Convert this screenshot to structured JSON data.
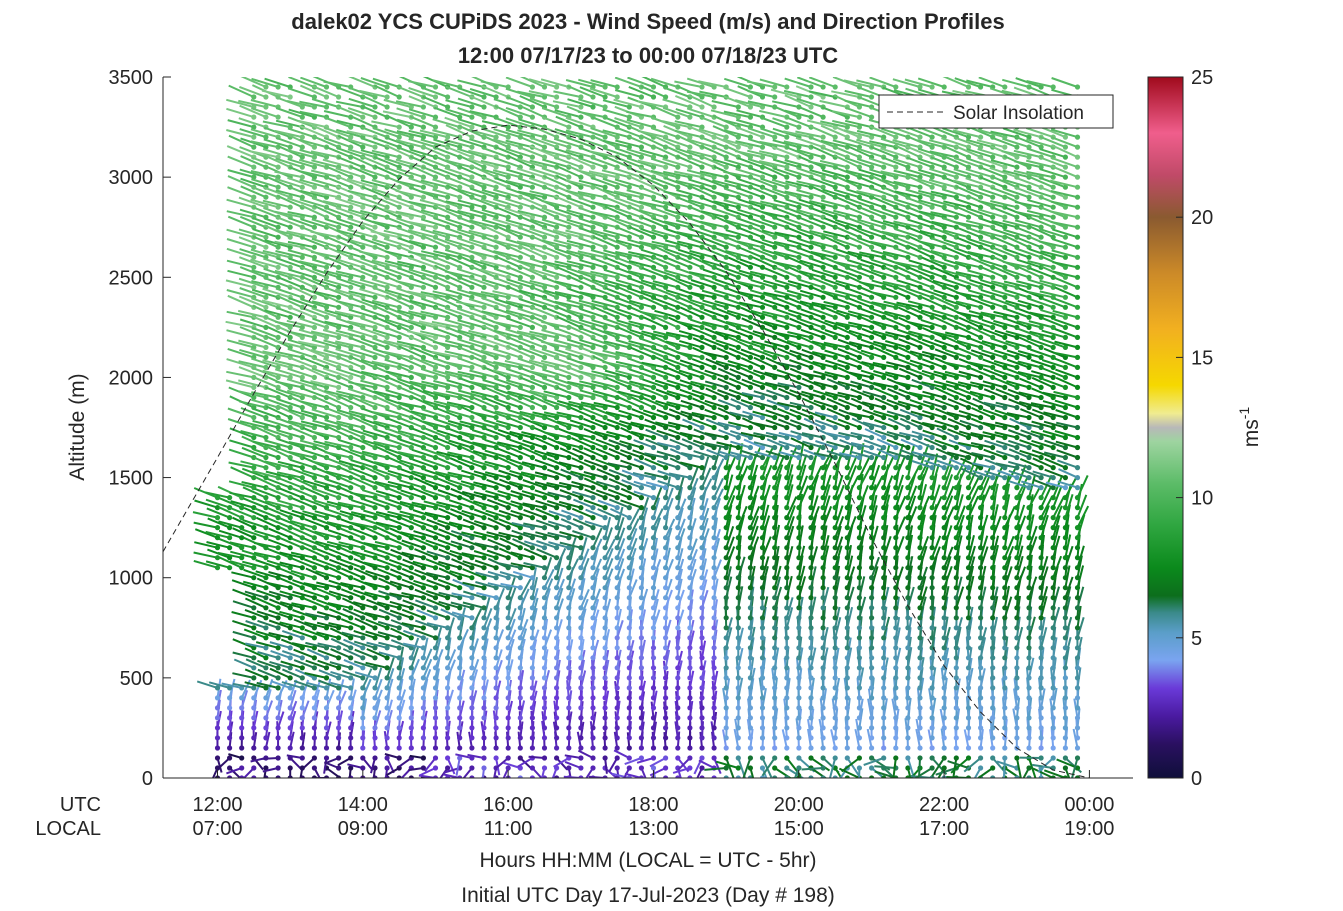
{
  "chart_data": {
    "type": "wind-barb profile (time-height)",
    "title": "dalek02 YCS CUPiDS 2023 - Wind Speed (m/s) and Direction Profiles",
    "subtitle": "12:00 07/17/23 to 00:00 07/18/23  UTC",
    "ylabel": "Altitude (m)",
    "ylim": [
      0,
      3500
    ],
    "y_ticks": [
      "0",
      "500",
      "1000",
      "1500",
      "2000",
      "2500",
      "3000",
      "3500"
    ],
    "xlim_hours_utc": [
      11.25,
      24.6
    ],
    "x_tick_hours_utc": [
      12,
      14,
      16,
      18,
      20,
      22,
      24
    ],
    "x_row_labels": [
      "UTC",
      "LOCAL"
    ],
    "x_ticks_utc": [
      "12:00",
      "14:00",
      "16:00",
      "18:00",
      "20:00",
      "22:00",
      "00:00"
    ],
    "x_ticks_local": [
      "07:00",
      "09:00",
      "11:00",
      "13:00",
      "15:00",
      "17:00",
      "19:00"
    ],
    "xlabel": "Hours HH:MM  (LOCAL = UTC - 5hr)",
    "xlabel2": "Initial UTC Day 17-Jul-2023 (Day # 198)",
    "legend": {
      "label": "Solar Insolation",
      "placement": "top-right"
    },
    "colorbar": {
      "label": "ms",
      "exponent": "-1",
      "range": [
        0,
        25
      ],
      "ticks": [
        "0",
        "5",
        "10",
        "15",
        "20",
        "25"
      ],
      "colors": [
        [
          0,
          "#0f0f3a"
        ],
        [
          1.2,
          "#2a1060"
        ],
        [
          2.2,
          "#4a1aa0"
        ],
        [
          3.2,
          "#6a3ad8"
        ],
        [
          4.2,
          "#7aa4f0"
        ],
        [
          5.2,
          "#5a9ec8"
        ],
        [
          5.9,
          "#3a8a8a"
        ],
        [
          6.5,
          "#0c6e1c"
        ],
        [
          7.5,
          "#0b8a1c"
        ],
        [
          9,
          "#2fa640"
        ],
        [
          10.5,
          "#5cbc68"
        ],
        [
          12,
          "#9ed4a0"
        ],
        [
          12.5,
          "#b8b8b8"
        ],
        [
          13,
          "#f0ec90"
        ],
        [
          14,
          "#f5d800"
        ],
        [
          16,
          "#f2b020"
        ],
        [
          18,
          "#cc8a28"
        ],
        [
          20,
          "#8a5a30"
        ],
        [
          21.5,
          "#c04a68"
        ],
        [
          23,
          "#f05e8c"
        ],
        [
          25,
          "#a00a1c"
        ]
      ]
    },
    "series": [
      {
        "type": "line",
        "style": "dashed",
        "x": [
          11.25,
          12.0,
          12.5,
          13.0,
          13.5,
          14.0,
          14.5,
          15.0,
          15.5,
          16.0,
          16.5,
          17.0,
          17.5,
          18.0,
          18.5,
          19.0,
          19.5,
          20.0,
          20.5,
          21.0,
          21.5,
          22.0,
          22.5,
          23.0,
          23.5,
          24.0,
          24.25,
          24.6
        ],
        "y": [
          1130,
          1600,
          1920,
          2230,
          2520,
          2780,
          2990,
          3150,
          3230,
          3260,
          3240,
          3190,
          3100,
          2960,
          2770,
          2530,
          2240,
          1920,
          1570,
          1200,
          860,
          560,
          330,
          150,
          40,
          0,
          0,
          0
        ]
      }
    ],
    "wind_profiles": {
      "start_hour_utc": 12.0,
      "end_hour_utc": 24.0,
      "interval_hours": 0.1667,
      "altitudes_m": [
        0,
        50,
        100,
        150,
        200,
        250,
        300,
        350,
        400,
        450,
        500,
        550,
        600,
        650,
        700,
        750,
        800,
        850,
        900,
        950,
        1000,
        1050,
        1100,
        1150,
        1200,
        1250,
        1300,
        1350,
        1400,
        1450,
        1500,
        1550,
        1600,
        1650,
        1700,
        1750,
        1800,
        1850,
        1900,
        1950,
        2000,
        2050,
        2100,
        2150,
        2200,
        2250,
        2300,
        2350,
        2400,
        2450,
        2500,
        2550,
        2600,
        2650,
        2700,
        2750,
        2800,
        2850,
        2900,
        2950,
        3000,
        3050,
        3100,
        3150,
        3200,
        3250,
        3300,
        3350,
        3400,
        3450
      ],
      "notes": "Speeds increase from ~1-3 m/s near the surface to ~7-12 m/s above ~1500 m; mixed layer top deepens from ~500 m (morning) to ~1500 m (afternoon)."
    }
  }
}
